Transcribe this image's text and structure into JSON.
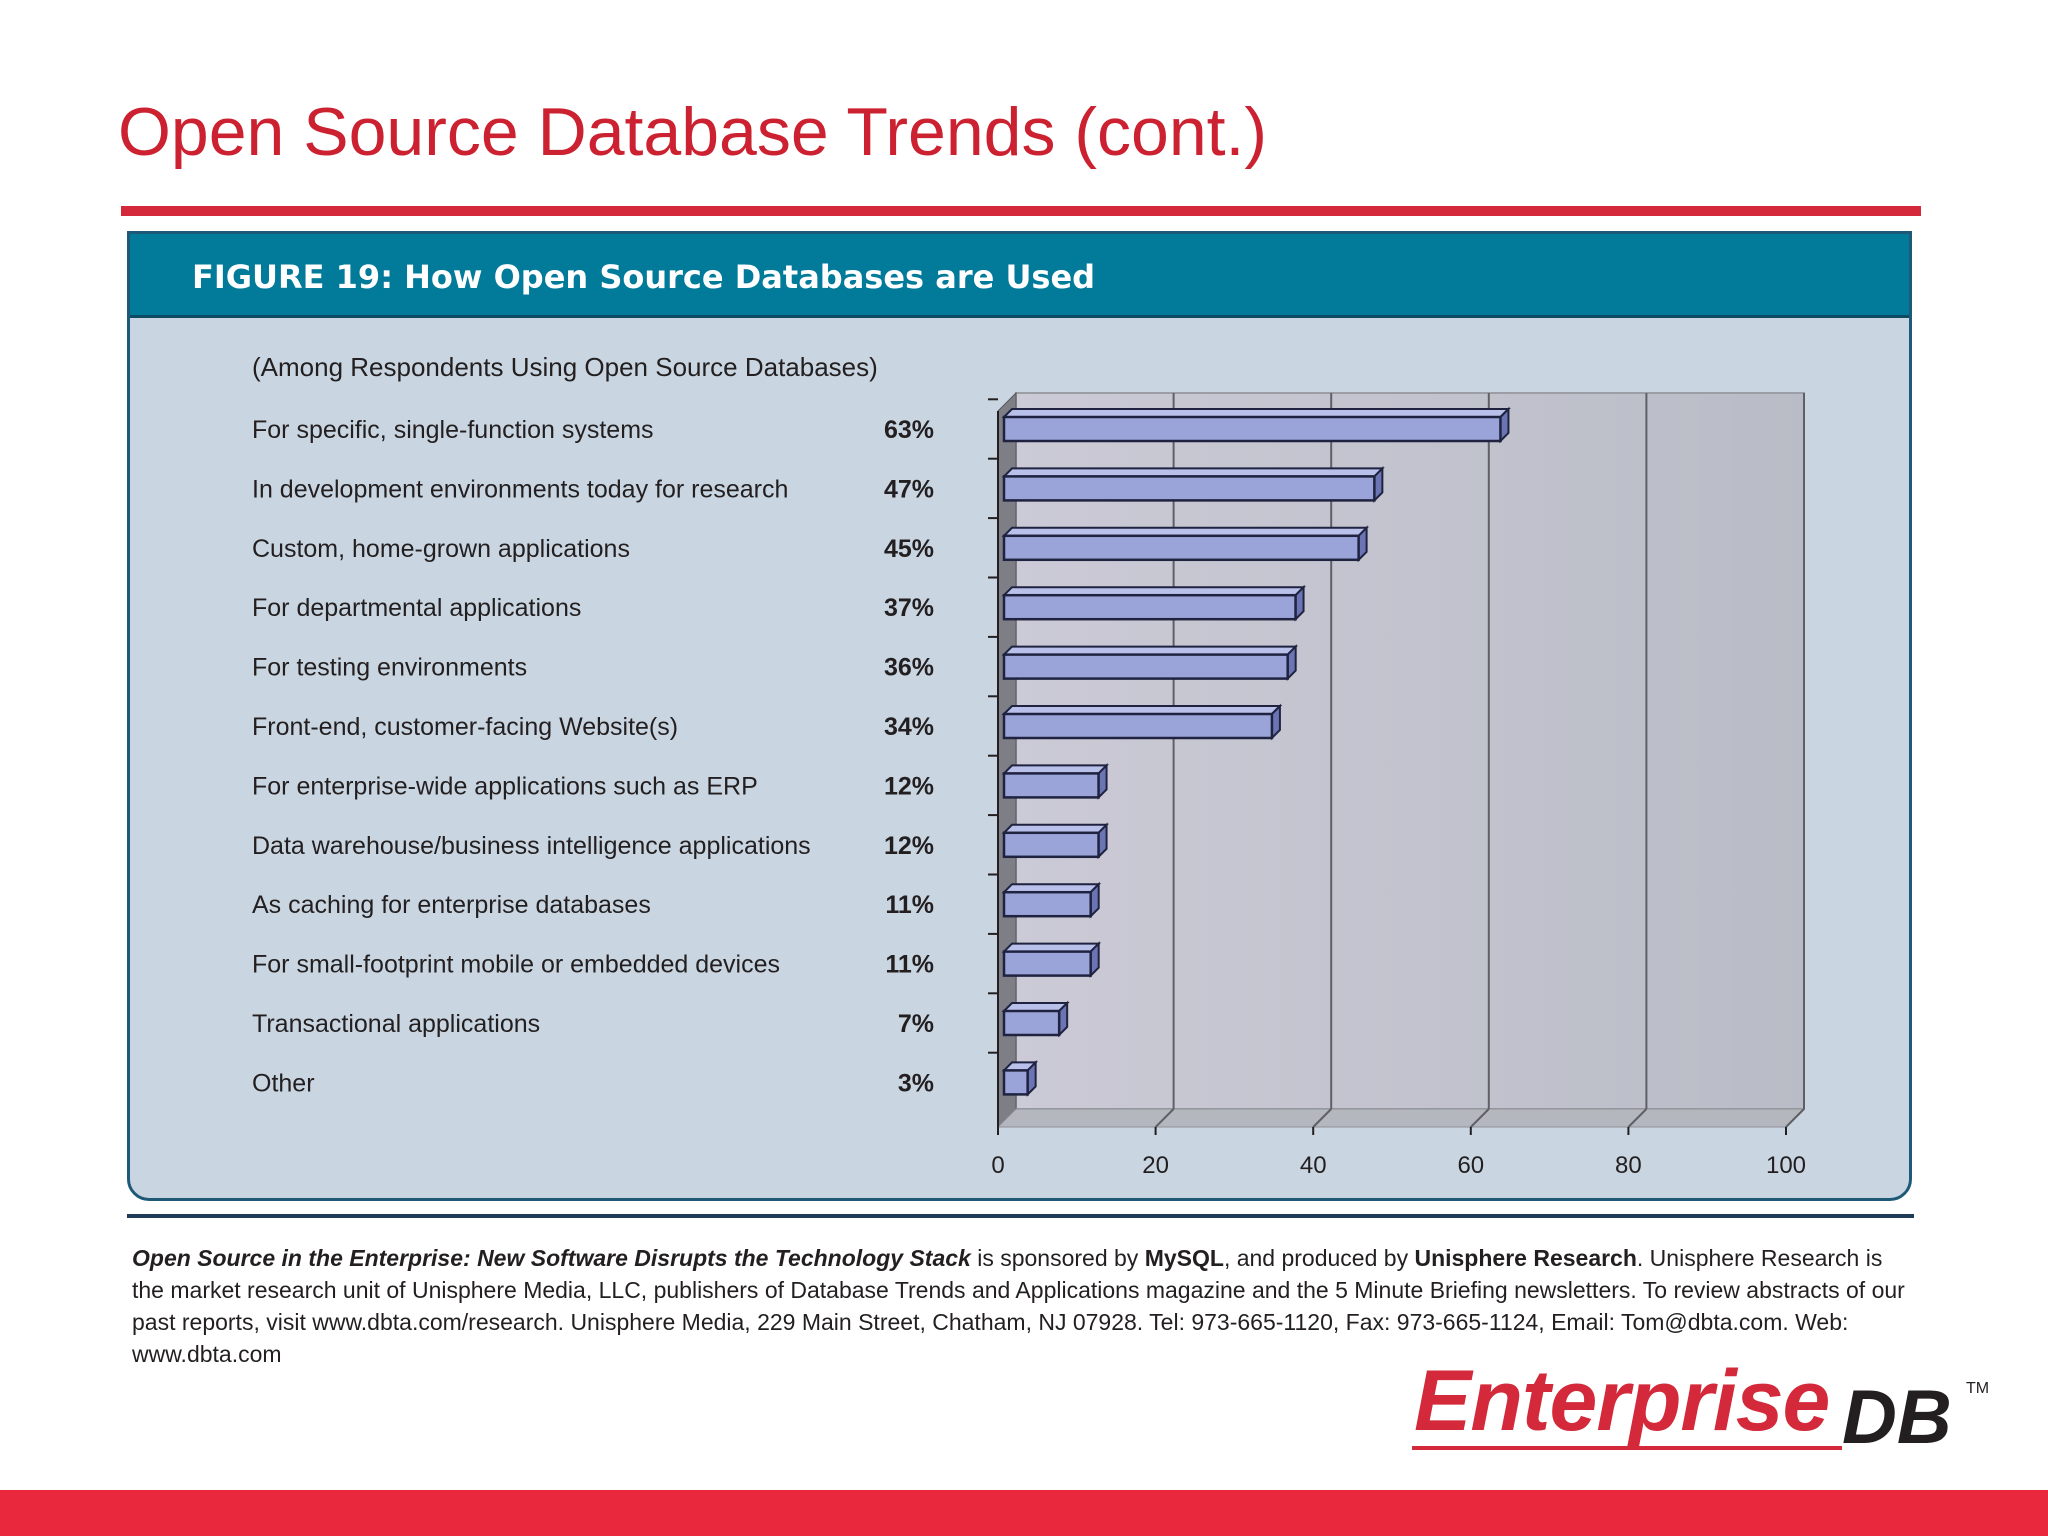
{
  "slide": {
    "title": "Open Source Database Trends (cont.)"
  },
  "figure": {
    "title": "FIGURE 19:  How Open Source Databases are Used",
    "subtitle": "(Among Respondents Using Open Source Databases)"
  },
  "chart_data": {
    "type": "bar",
    "orientation": "horizontal",
    "title": "FIGURE 19:  How Open Source Databases are Used",
    "subtitle": "(Among Respondents Using Open Source Databases)",
    "categories": [
      "For specific, single-function systems",
      "In development environments today for research",
      "Custom, home-grown applications",
      "For departmental applications",
      "For testing environments",
      "Front-end, customer-facing Website(s)",
      "For enterprise-wide applications such as ERP",
      "Data warehouse/business intelligence applications",
      "As caching for enterprise databases",
      "For small-footprint mobile or embedded devices",
      "Transactional applications",
      "Other"
    ],
    "values": [
      63,
      47,
      45,
      37,
      36,
      34,
      12,
      12,
      11,
      11,
      7,
      3
    ],
    "value_labels": [
      "63%",
      "47%",
      "45%",
      "37%",
      "36%",
      "34%",
      "12%",
      "12%",
      "11%",
      "11%",
      "7%",
      "3%"
    ],
    "xlim": [
      0,
      100
    ],
    "xticks": [
      "0",
      "20",
      "40",
      "60",
      "80",
      "100"
    ],
    "grid": true,
    "xlabel": "",
    "ylabel": "",
    "bar_color": "#9aa4d8",
    "plot_background": "#bdc1cc"
  },
  "footer": {
    "pub_title": "Open Source in the Enterprise: New Software Disrupts the Technology Stack",
    "t1": " is sponsored by ",
    "sponsor": "MySQL",
    "t2": ", and produced by ",
    "producer": "Unisphere Research",
    "t3": ".  Unisphere Research is the market research unit of Unisphere Media, LLC, publishers of Database Trends and Applications magazine and the 5 Minute Briefing newsletters. To review abstracts of our past reports, visit www.dbta.com/research.  Unisphere Media, 229 Main Street, Chatham, NJ 07928. Tel: 973-665-1120, Fax: 973-665-1124, Email: Tom@dbta.com.  Web: www.dbta.com"
  },
  "logo": {
    "name_part1": "Enterprise",
    "name_part2": "DB",
    "tm": "TM"
  },
  "colors": {
    "title_red": "#cc2130",
    "header_teal": "#027b9b",
    "panel_bg": "#c9d6e1",
    "bar_fill": "#9aa4d8",
    "bar_edge": "#1f2340"
  }
}
